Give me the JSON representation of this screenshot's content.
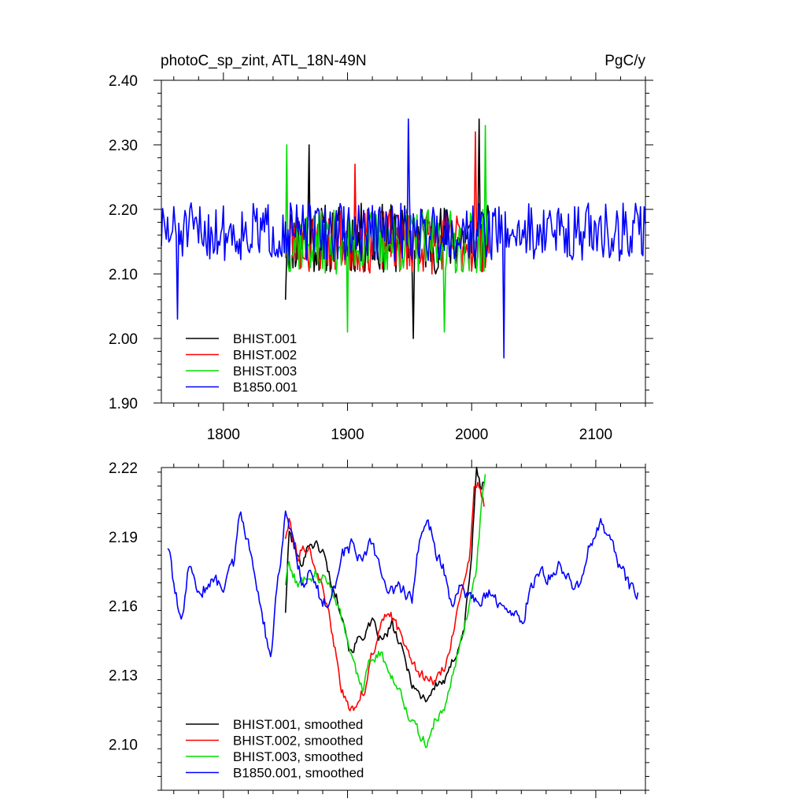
{
  "chart_data": [
    {
      "type": "line",
      "title": "photoC_sp_zint, ATL_18N-49N",
      "units": "PgC/y",
      "xlabel": "",
      "ylabel": "",
      "xlim": [
        1750,
        2140
      ],
      "ylim": [
        1.9,
        2.4
      ],
      "xticks": [
        1800,
        1900,
        2000,
        2100
      ],
      "xtick_labels": [
        "1800",
        "1900",
        "2000",
        "2100"
      ],
      "yticks": [
        1.9,
        2.0,
        2.1,
        2.2,
        2.3,
        2.4
      ],
      "ytick_labels": [
        "1.90",
        "2.00",
        "2.10",
        "2.20",
        "2.30",
        "2.40"
      ],
      "legend_position": "bottom-left",
      "series": [
        {
          "name": "BHIST.001",
          "color": "#000000",
          "start": 1850,
          "end": 2014,
          "mean": 2.155,
          "spread": 0.055,
          "seed": 11,
          "keypoints": [
            [
              1850,
              2.06
            ],
            [
              1869,
              2.3
            ],
            [
              1953,
              2.0
            ],
            [
              2006,
              2.34
            ]
          ]
        },
        {
          "name": "BHIST.002",
          "color": "#ff0000",
          "start": 1850,
          "end": 2014,
          "mean": 2.15,
          "spread": 0.05,
          "seed": 23,
          "keypoints": [
            [
              1906,
              2.27
            ],
            [
              2003,
              2.32
            ]
          ]
        },
        {
          "name": "BHIST.003",
          "color": "#00dd00",
          "start": 1850,
          "end": 2014,
          "mean": 2.15,
          "spread": 0.05,
          "seed": 37,
          "keypoints": [
            [
              1851,
              2.3
            ],
            [
              1900,
              2.01
            ],
            [
              1978,
              2.01
            ],
            [
              2011,
              2.33
            ]
          ]
        },
        {
          "name": "B1850.001",
          "color": "#0000ff",
          "start": 1750,
          "end": 2140,
          "mean": 2.165,
          "spread": 0.045,
          "seed": 51,
          "keypoints": [
            [
              1763,
              2.03
            ],
            [
              1949,
              2.34
            ],
            [
              2026,
              1.97
            ]
          ]
        }
      ]
    },
    {
      "type": "line",
      "title": "",
      "xlabel": "",
      "ylabel": "",
      "xlim": [
        1750,
        2140
      ],
      "ylim": [
        2.08,
        2.22
      ],
      "xticks": [
        1800,
        1900,
        2000,
        2100
      ],
      "yticks": [
        2.1,
        2.13,
        2.16,
        2.19,
        2.22
      ],
      "ytick_labels": [
        "2.10",
        "2.13",
        "2.16",
        "2.19",
        "2.22"
      ],
      "legend_position": "bottom-left",
      "series": [
        {
          "name": "BHIST.001, smoothed",
          "color": "#000000",
          "seed": 101,
          "noise": 0.004,
          "path": [
            [
              1850,
              2.158
            ],
            [
              1853,
              2.192
            ],
            [
              1862,
              2.178
            ],
            [
              1870,
              2.188
            ],
            [
              1880,
              2.184
            ],
            [
              1888,
              2.168
            ],
            [
              1896,
              2.157
            ],
            [
              1902,
              2.14
            ],
            [
              1910,
              2.146
            ],
            [
              1920,
              2.152
            ],
            [
              1928,
              2.144
            ],
            [
              1936,
              2.152
            ],
            [
              1944,
              2.14
            ],
            [
              1952,
              2.127
            ],
            [
              1958,
              2.121
            ],
            [
              1964,
              2.12
            ],
            [
              1972,
              2.126
            ],
            [
              1980,
              2.128
            ],
            [
              1988,
              2.141
            ],
            [
              1994,
              2.15
            ],
            [
              2000,
              2.183
            ],
            [
              2004,
              2.219
            ],
            [
              2008,
              2.21
            ],
            [
              2010,
              2.214
            ]
          ]
        },
        {
          "name": "BHIST.002, smoothed",
          "color": "#ff0000",
          "seed": 113,
          "noise": 0.004,
          "path": [
            [
              1850,
              2.19
            ],
            [
              1853,
              2.197
            ],
            [
              1860,
              2.182
            ],
            [
              1868,
              2.187
            ],
            [
              1875,
              2.176
            ],
            [
              1882,
              2.162
            ],
            [
              1888,
              2.148
            ],
            [
              1894,
              2.126
            ],
            [
              1898,
              2.119
            ],
            [
              1902,
              2.114
            ],
            [
              1908,
              2.118
            ],
            [
              1915,
              2.126
            ],
            [
              1920,
              2.14
            ],
            [
              1928,
              2.152
            ],
            [
              1934,
              2.157
            ],
            [
              1940,
              2.15
            ],
            [
              1946,
              2.145
            ],
            [
              1952,
              2.138
            ],
            [
              1958,
              2.13
            ],
            [
              1964,
              2.128
            ],
            [
              1972,
              2.128
            ],
            [
              1980,
              2.136
            ],
            [
              1988,
              2.157
            ],
            [
              1994,
              2.17
            ],
            [
              1998,
              2.178
            ],
            [
              2002,
              2.21
            ],
            [
              2006,
              2.212
            ],
            [
              2010,
              2.205
            ]
          ]
        },
        {
          "name": "BHIST.003, smoothed",
          "color": "#00dd00",
          "seed": 127,
          "noise": 0.004,
          "path": [
            [
              1850,
              2.17
            ],
            [
              1853,
              2.179
            ],
            [
              1860,
              2.168
            ],
            [
              1866,
              2.173
            ],
            [
              1874,
              2.174
            ],
            [
              1882,
              2.171
            ],
            [
              1890,
              2.165
            ],
            [
              1898,
              2.15
            ],
            [
              1906,
              2.132
            ],
            [
              1912,
              2.124
            ],
            [
              1918,
              2.136
            ],
            [
              1926,
              2.14
            ],
            [
              1934,
              2.131
            ],
            [
              1942,
              2.124
            ],
            [
              1950,
              2.112
            ],
            [
              1958,
              2.104
            ],
            [
              1964,
              2.099
            ],
            [
              1970,
              2.11
            ],
            [
              1978,
              2.115
            ],
            [
              1986,
              2.134
            ],
            [
              1994,
              2.15
            ],
            [
              2000,
              2.166
            ],
            [
              2004,
              2.175
            ],
            [
              2008,
              2.205
            ],
            [
              2011,
              2.216
            ]
          ]
        },
        {
          "name": "B1850.001, smoothed",
          "color": "#0000ff",
          "seed": 139,
          "noise": 0.005,
          "path": [
            [
              1755,
              2.186
            ],
            [
              1760,
              2.17
            ],
            [
              1766,
              2.151
            ],
            [
              1772,
              2.176
            ],
            [
              1780,
              2.166
            ],
            [
              1790,
              2.17
            ],
            [
              1800,
              2.17
            ],
            [
              1808,
              2.178
            ],
            [
              1814,
              2.202
            ],
            [
              1820,
              2.188
            ],
            [
              1828,
              2.165
            ],
            [
              1834,
              2.148
            ],
            [
              1838,
              2.135
            ],
            [
              1844,
              2.172
            ],
            [
              1850,
              2.2
            ],
            [
              1856,
              2.188
            ],
            [
              1864,
              2.17
            ],
            [
              1872,
              2.175
            ],
            [
              1880,
              2.16
            ],
            [
              1888,
              2.165
            ],
            [
              1896,
              2.182
            ],
            [
              1904,
              2.186
            ],
            [
              1912,
              2.18
            ],
            [
              1920,
              2.188
            ],
            [
              1928,
              2.172
            ],
            [
              1936,
              2.165
            ],
            [
              1944,
              2.168
            ],
            [
              1952,
              2.162
            ],
            [
              1958,
              2.188
            ],
            [
              1964,
              2.2
            ],
            [
              1970,
              2.185
            ],
            [
              1978,
              2.175
            ],
            [
              1984,
              2.16
            ],
            [
              1990,
              2.17
            ],
            [
              1998,
              2.165
            ],
            [
              2006,
              2.162
            ],
            [
              2016,
              2.165
            ],
            [
              2024,
              2.16
            ],
            [
              2032,
              2.158
            ],
            [
              2040,
              2.15
            ],
            [
              2048,
              2.17
            ],
            [
              2056,
              2.175
            ],
            [
              2064,
              2.172
            ],
            [
              2072,
              2.178
            ],
            [
              2080,
              2.168
            ],
            [
              2088,
              2.17
            ],
            [
              2096,
              2.188
            ],
            [
              2104,
              2.198
            ],
            [
              2112,
              2.186
            ],
            [
              2120,
              2.176
            ],
            [
              2128,
              2.168
            ],
            [
              2134,
              2.164
            ]
          ]
        }
      ]
    }
  ]
}
